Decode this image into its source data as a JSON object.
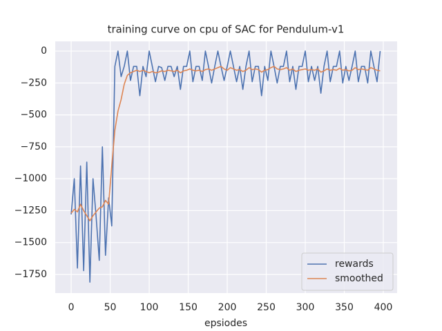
{
  "chart_data": {
    "type": "line",
    "title": "training curve on cpu of SAC for Pendulum-v1",
    "xlabel": "epsiodes",
    "x": [
      0,
      4,
      8,
      12,
      16,
      20,
      24,
      28,
      32,
      36,
      40,
      44,
      48,
      52,
      56,
      60,
      64,
      68,
      72,
      76,
      80,
      84,
      88,
      92,
      96,
      100,
      104,
      108,
      112,
      116,
      120,
      124,
      128,
      132,
      136,
      140,
      144,
      148,
      152,
      156,
      160,
      164,
      168,
      172,
      176,
      180,
      184,
      188,
      192,
      196,
      200,
      204,
      208,
      212,
      216,
      220,
      224,
      228,
      232,
      236,
      240,
      244,
      248,
      252,
      256,
      260,
      264,
      268,
      272,
      276,
      280,
      284,
      288,
      292,
      296,
      300,
      304,
      308,
      312,
      316,
      320,
      324,
      328,
      332,
      336,
      340,
      344,
      348,
      352,
      356,
      360,
      364,
      368,
      372,
      376,
      380,
      384,
      388,
      392,
      396
    ],
    "series": [
      {
        "name": "rewards",
        "color": "#4c72b0",
        "values": [
          -1280,
          -1000,
          -1700,
          -900,
          -1720,
          -870,
          -1810,
          -1000,
          -1300,
          -1640,
          -750,
          -1600,
          -1150,
          -1370,
          -120,
          0,
          -200,
          -120,
          0,
          -230,
          -120,
          -120,
          -350,
          -120,
          -200,
          0,
          -120,
          -240,
          -120,
          -130,
          -230,
          -120,
          -120,
          -200,
          -120,
          -300,
          -120,
          -120,
          0,
          -240,
          -120,
          -120,
          -230,
          0,
          -120,
          -250,
          -120,
          0,
          -120,
          -230,
          -120,
          0,
          -120,
          -240,
          -120,
          -300,
          -120,
          0,
          -240,
          -120,
          -120,
          -350,
          -120,
          -230,
          0,
          -120,
          -250,
          -120,
          -120,
          0,
          -240,
          -120,
          -300,
          -120,
          -120,
          0,
          -240,
          -120,
          -230,
          -120,
          -330,
          -120,
          0,
          -240,
          -120,
          -120,
          0,
          -250,
          -120,
          -230,
          -120,
          0,
          -240,
          -120,
          -120,
          -250,
          0,
          -120,
          -240,
          0
        ]
      },
      {
        "name": "smoothed",
        "color": "#dd8452",
        "values": [
          -1270,
          -1240,
          -1260,
          -1200,
          -1250,
          -1290,
          -1330,
          -1290,
          -1260,
          -1230,
          -1220,
          -1170,
          -1200,
          -900,
          -620,
          -470,
          -380,
          -260,
          -190,
          -170,
          -160,
          -150,
          -160,
          -150,
          -160,
          -170,
          -160,
          -170,
          -165,
          -155,
          -160,
          -150,
          -155,
          -160,
          -150,
          -170,
          -155,
          -150,
          -140,
          -150,
          -155,
          -150,
          -160,
          -145,
          -140,
          -150,
          -140,
          -130,
          -120,
          -140,
          -150,
          -130,
          -140,
          -150,
          -145,
          -160,
          -150,
          -130,
          -145,
          -140,
          -145,
          -165,
          -150,
          -145,
          -130,
          -120,
          -140,
          -145,
          -140,
          -130,
          -150,
          -140,
          -160,
          -150,
          -145,
          -140,
          -150,
          -145,
          -150,
          -140,
          -165,
          -155,
          -140,
          -150,
          -145,
          -150,
          -135,
          -150,
          -145,
          -155,
          -150,
          -130,
          -145,
          -140,
          -145,
          -150,
          -130,
          -140,
          -150,
          -155
        ]
      }
    ],
    "xlim": [
      -20.4,
      417.7
    ],
    "ylim": [
      -1896,
      76
    ],
    "xticks": [
      0,
      50,
      100,
      150,
      200,
      250,
      300,
      350,
      400
    ],
    "yticks": [
      0,
      {
        "value": -250,
        "label": "−250"
      },
      {
        "value": -500,
        "label": "−500"
      },
      {
        "value": -750,
        "label": "−750"
      },
      {
        "value": -1000,
        "label": "−1000"
      },
      {
        "value": -1250,
        "label": "−1250"
      },
      {
        "value": -1500,
        "label": "−1500"
      },
      {
        "value": -1750,
        "label": "−1750"
      }
    ],
    "grid": true,
    "legend": "lower right"
  }
}
